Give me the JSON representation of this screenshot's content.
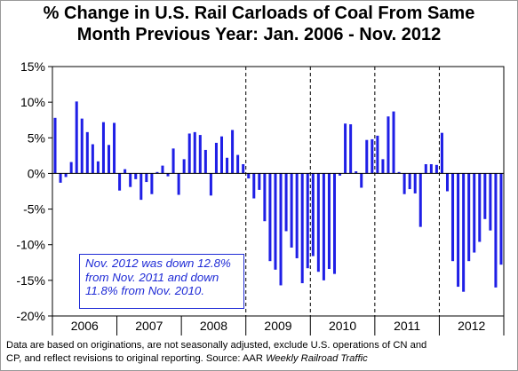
{
  "title_line1": "% Change in U.S. Rail Carloads of Coal From Same",
  "title_line2": "Month Previous Year:  Jan. 2006 - Nov. 2012",
  "annotation": {
    "line1": "Nov. 2012 was down 12.8%",
    "line2": "from Nov. 2011 and down",
    "line3": "11.8% from Nov. 2010."
  },
  "footnote": {
    "line1": "Data are based on originations, are not seasonally adjusted, exclude U.S. operations of CN and",
    "line2_prefix": "CP, and reflect revisions to original reporting.  Source: AAR ",
    "line2_source": "Weekly Railroad Traffic"
  },
  "colors": {
    "bar": "#1f1fe6",
    "text": "#000000",
    "annotation": "#1f2bd6"
  },
  "chart_data": {
    "type": "bar",
    "title": "% Change in U.S. Rail Carloads of Coal From Same Month Previous Year:  Jan. 2006 - Nov. 2012",
    "xlabel": "",
    "ylabel": "",
    "ylim": [
      -20,
      15
    ],
    "yticks": [
      15,
      10,
      5,
      0,
      -5,
      -10,
      -15,
      -20
    ],
    "ytick_labels": [
      "15%",
      "10%",
      "5%",
      "0%",
      "-5%",
      "-10%",
      "-15%",
      "-20%"
    ],
    "year_labels": [
      "2006",
      "2007",
      "2008",
      "2009",
      "2010",
      "2011",
      "2012"
    ],
    "months_per_year": 12,
    "total_slots": 84,
    "grid": false,
    "dashed_year_separators": [
      "2008/2009",
      "2009/2010",
      "2010/2011",
      "2011/2012"
    ],
    "series": [
      {
        "name": "",
        "values": [
          7.8,
          -1.3,
          -0.5,
          1.6,
          10.1,
          7.7,
          5.8,
          4.1,
          1.7,
          7.2,
          4.0,
          7.1,
          -2.4,
          0.6,
          -1.9,
          -0.8,
          -3.7,
          -1.2,
          -2.9,
          0.2,
          1.1,
          -0.4,
          3.5,
          -3.0,
          2.0,
          5.6,
          5.8,
          5.4,
          3.3,
          -3.1,
          4.3,
          5.2,
          2.2,
          6.1,
          2.6,
          1.3,
          -0.7,
          -3.5,
          -2.3,
          -6.7,
          -12.3,
          -13.5,
          -15.7,
          -8.1,
          -10.4,
          -11.9,
          -15.4,
          -13.3,
          -11.6,
          -13.8,
          -15.0,
          -13.4,
          -14.1,
          -0.3,
          7.0,
          6.9,
          0.3,
          -2.0,
          4.7,
          4.8,
          5.3,
          2.0,
          8.0,
          8.7,
          0.2,
          -2.9,
          -2.2,
          -2.8,
          -7.5,
          1.3,
          1.3,
          1.2,
          5.7,
          -2.5,
          -12.3,
          -15.9,
          -16.6,
          -12.3,
          -11.1,
          -9.6,
          -6.4,
          -8.0,
          -16.0,
          -12.8
        ]
      }
    ]
  }
}
